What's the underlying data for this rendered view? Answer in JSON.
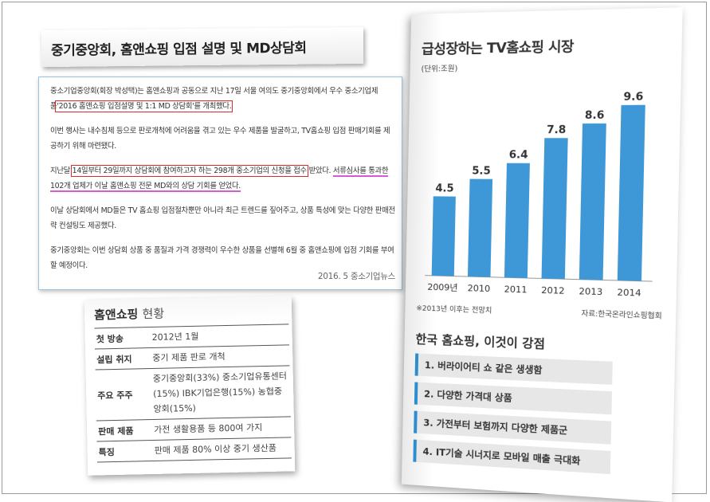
{
  "title": "중기중앙회, 홈앤쇼핑 입점 설명 및 MD상담회",
  "article": {
    "p1_pre": "중소기업중앙회(회장 박성택)는 홈앤쇼핑과 공동으로 지난 17일 서울 여의도 중기중앙회에서 우수 중소기업제품",
    "p1_hl": "'2016 홈앤쇼핑 입점설명 및 1:1 MD 상담회'를 개최했다.",
    "p2": "이번 행사는 내수침체 등으로 판로개척에 어려움을 겪고 있는 우수 제품을 발굴하고, TV홈쇼핑 입점 판매기회를 제공하기 위해 마련됐다.",
    "p3_pre": "지난달",
    "p3_hl": "14일부터 29일까지 상담회에 참여하고자 하는 298개 중소기업의 신청을 접수",
    "p3_post": "받았다.",
    "p3_under": "서류심사를 통과한 102개 업체가 이날 홈앤쇼핑 전문 MD와의 상담 기회를 얻었다.",
    "p4": "이날 상담회에서 MD들은 TV 홈쇼핑 입점절차뿐만 아니라 최근 트렌드를 짚어주고, 상품 특성에 맞는 다양한 판매전략 컨설팅도 제공했다.",
    "p5": "중기중앙회는 이번 상담회 상품 중 품질과 가격 경쟁력이 우수한 상품을 선별해 6월 중 홈앤쇼핑에 입점 기회를 부여할 예정이다.",
    "source": "2016. 5 중소기업뉴스"
  },
  "status": {
    "head_bold": "홈앤쇼핑",
    "head_light": "현황",
    "rows": [
      {
        "key": "첫 방송",
        "value": "2012년 1월"
      },
      {
        "key": "설립 취지",
        "value": "중기 제품 판로 개척"
      },
      {
        "key": "주요 주주",
        "value": "중기중앙회(33%) 중소기업유통센터(15%) IBK기업은행(15%) 농협중앙회(15%)"
      },
      {
        "key": "판매 제품",
        "value": "가전 생활용품 등 800여 가지"
      },
      {
        "key": "특징",
        "value": "판매 제품 80% 이상 중기 생산품"
      }
    ]
  },
  "infographic": {
    "chart_title": "급성장하는 TV홈쇼핑 시장",
    "unit": "(단위:조원)",
    "note_left": "※2013년 이후는 전망치",
    "note_right": "자료:한국온라인쇼핑협회",
    "strengths_title": "한국 홈쇼핑, 이것이 강점",
    "strengths": [
      "1. 버라이어티 쇼 같은 생생함",
      "2. 다양한 가격대 상품",
      "3. 가전부터 보험까지 다양한 제품군",
      "4. IT기술 시너지로 모바일 매출 극대화"
    ],
    "bar_color": "#3e97d6"
  },
  "chart_data": {
    "type": "bar",
    "categories": [
      "2009년",
      "2010",
      "2011",
      "2012",
      "2013",
      "2014"
    ],
    "values": [
      4.5,
      5.5,
      6.4,
      7.8,
      8.6,
      9.6
    ],
    "value_labels": [
      "4.5",
      "5.5",
      "6.4",
      "7.8",
      "8.6",
      "9.6"
    ],
    "title": "급성장하는 TV홈쇼핑 시장",
    "ylabel": "(단위:조원)",
    "ylim": [
      0,
      10
    ]
  }
}
